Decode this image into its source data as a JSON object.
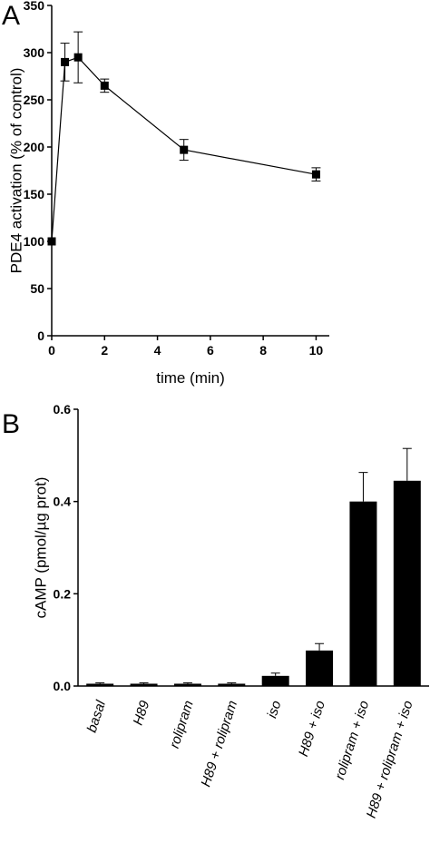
{
  "chart_data": [
    {
      "panel": "A",
      "type": "line",
      "xlabel": "time (min)",
      "ylabel": "PDE4 activation (% of control)",
      "xlim": [
        0,
        10.5
      ],
      "ylim": [
        0,
        350
      ],
      "xticks": [
        0,
        2,
        4,
        6,
        8,
        10
      ],
      "yticks": [
        0,
        50,
        100,
        150,
        200,
        250,
        300,
        350
      ],
      "marker": "square",
      "color": "#000000",
      "grid": false,
      "series": [
        {
          "x": [
            0,
            0.5,
            1,
            2,
            5,
            10
          ],
          "y": [
            100,
            290,
            295,
            265,
            197,
            171
          ],
          "error": [
            0,
            20,
            27,
            7,
            11,
            7
          ]
        }
      ]
    },
    {
      "panel": "B",
      "type": "bar",
      "xlabel": "",
      "ylabel": "cAMP (pmol/µg prot)",
      "ylim": [
        0,
        0.6
      ],
      "yticks": [
        0.0,
        0.2,
        0.4,
        0.6
      ],
      "ytick_labels": [
        "0.0",
        "0.2",
        "0.4",
        "0.6"
      ],
      "color": "#000000",
      "grid": false,
      "categories": [
        "basal",
        "H89",
        "rolipram",
        "H89 + rolipram",
        "iso",
        "H89 + iso",
        "rolipram + iso",
        "H89 + rolipram + iso"
      ],
      "values": [
        0.005,
        0.005,
        0.005,
        0.005,
        0.022,
        0.077,
        0.4,
        0.445
      ],
      "error": [
        0.002,
        0.002,
        0.002,
        0.002,
        0.006,
        0.015,
        0.063,
        0.07
      ]
    }
  ]
}
